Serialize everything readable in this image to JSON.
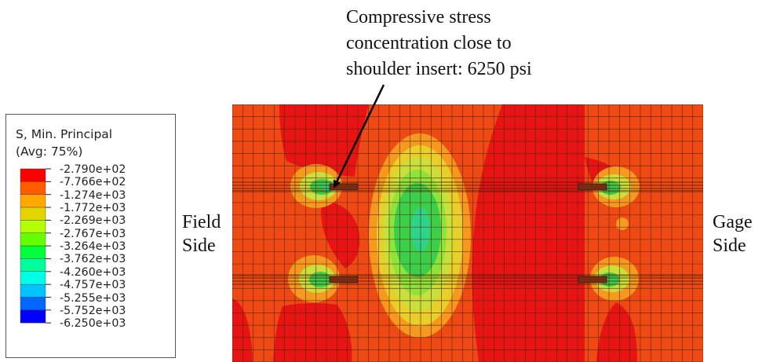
{
  "annotation": {
    "lines": [
      "Compressive stress",
      "concentration close to",
      "shoulder insert: 6250 psi"
    ]
  },
  "side_labels": {
    "field": [
      "Field",
      "Side"
    ],
    "gage": [
      "Gage",
      "Side"
    ]
  },
  "legend": {
    "title_line1": "S, Min. Principal",
    "title_line2": "(Avg: 75%)",
    "levels": [
      "-2.790e+02",
      "-7.766e+02",
      "-1.274e+03",
      "-1.772e+03",
      "-2.269e+03",
      "-2.767e+03",
      "-3.264e+03",
      "-3.762e+03",
      "-4.260e+03",
      "-4.757e+03",
      "-5.255e+03",
      "-5.752e+03",
      "-6.250e+03"
    ],
    "colors": [
      "#ff0000",
      "#ff5c00",
      "#ffa800",
      "#e4d400",
      "#b4ff00",
      "#64ff00",
      "#00ff3c",
      "#00ff9c",
      "#00ffe6",
      "#00c4ff",
      "#0068ff",
      "#0000ff"
    ]
  },
  "colors": {
    "background_orange": "#f04a14",
    "red": "#e81414",
    "orange_light": "#f59a1e",
    "yellow": "#e8d02a",
    "yellow_green": "#c8e03c",
    "light_green": "#8ee43a",
    "green": "#3ccf4a",
    "teal": "#2ed48a",
    "mesh_line": "#5a2410"
  }
}
